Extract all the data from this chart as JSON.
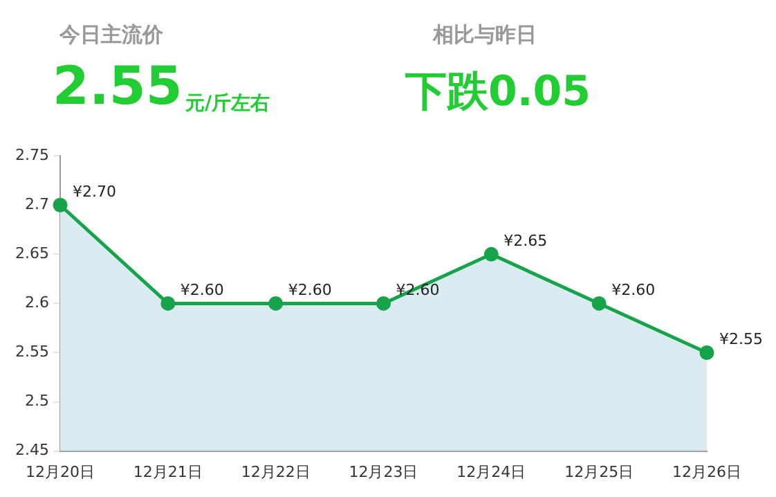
{
  "chart_data": {
    "type": "area",
    "annotations": [
      "今日主流价",
      "2.55",
      "元/斤左右",
      "相比与昨日",
      "下跌0.05"
    ],
    "categories": [
      "12月20日",
      "12月21日",
      "12月22日",
      "12月23日",
      "12月24日",
      "12月25日",
      "12月26日"
    ],
    "series": [
      {
        "color": "#16a34a",
        "values": [
          2.7,
          2.6,
          2.6,
          2.6,
          2.65,
          2.6,
          2.55
        ],
        "value_labels": [
          "¥2.70",
          "¥2.60",
          "¥2.60",
          "¥2.60",
          "¥2.65",
          "¥2.60",
          "¥2.55"
        ]
      }
    ],
    "ylim": [
      2.45,
      2.75
    ],
    "yticks": [
      2.45,
      2.5,
      2.55,
      2.6,
      2.65,
      2.7,
      2.75
    ],
    "grid": false,
    "legend": false,
    "marker": "circle",
    "line_style": "solid"
  }
}
